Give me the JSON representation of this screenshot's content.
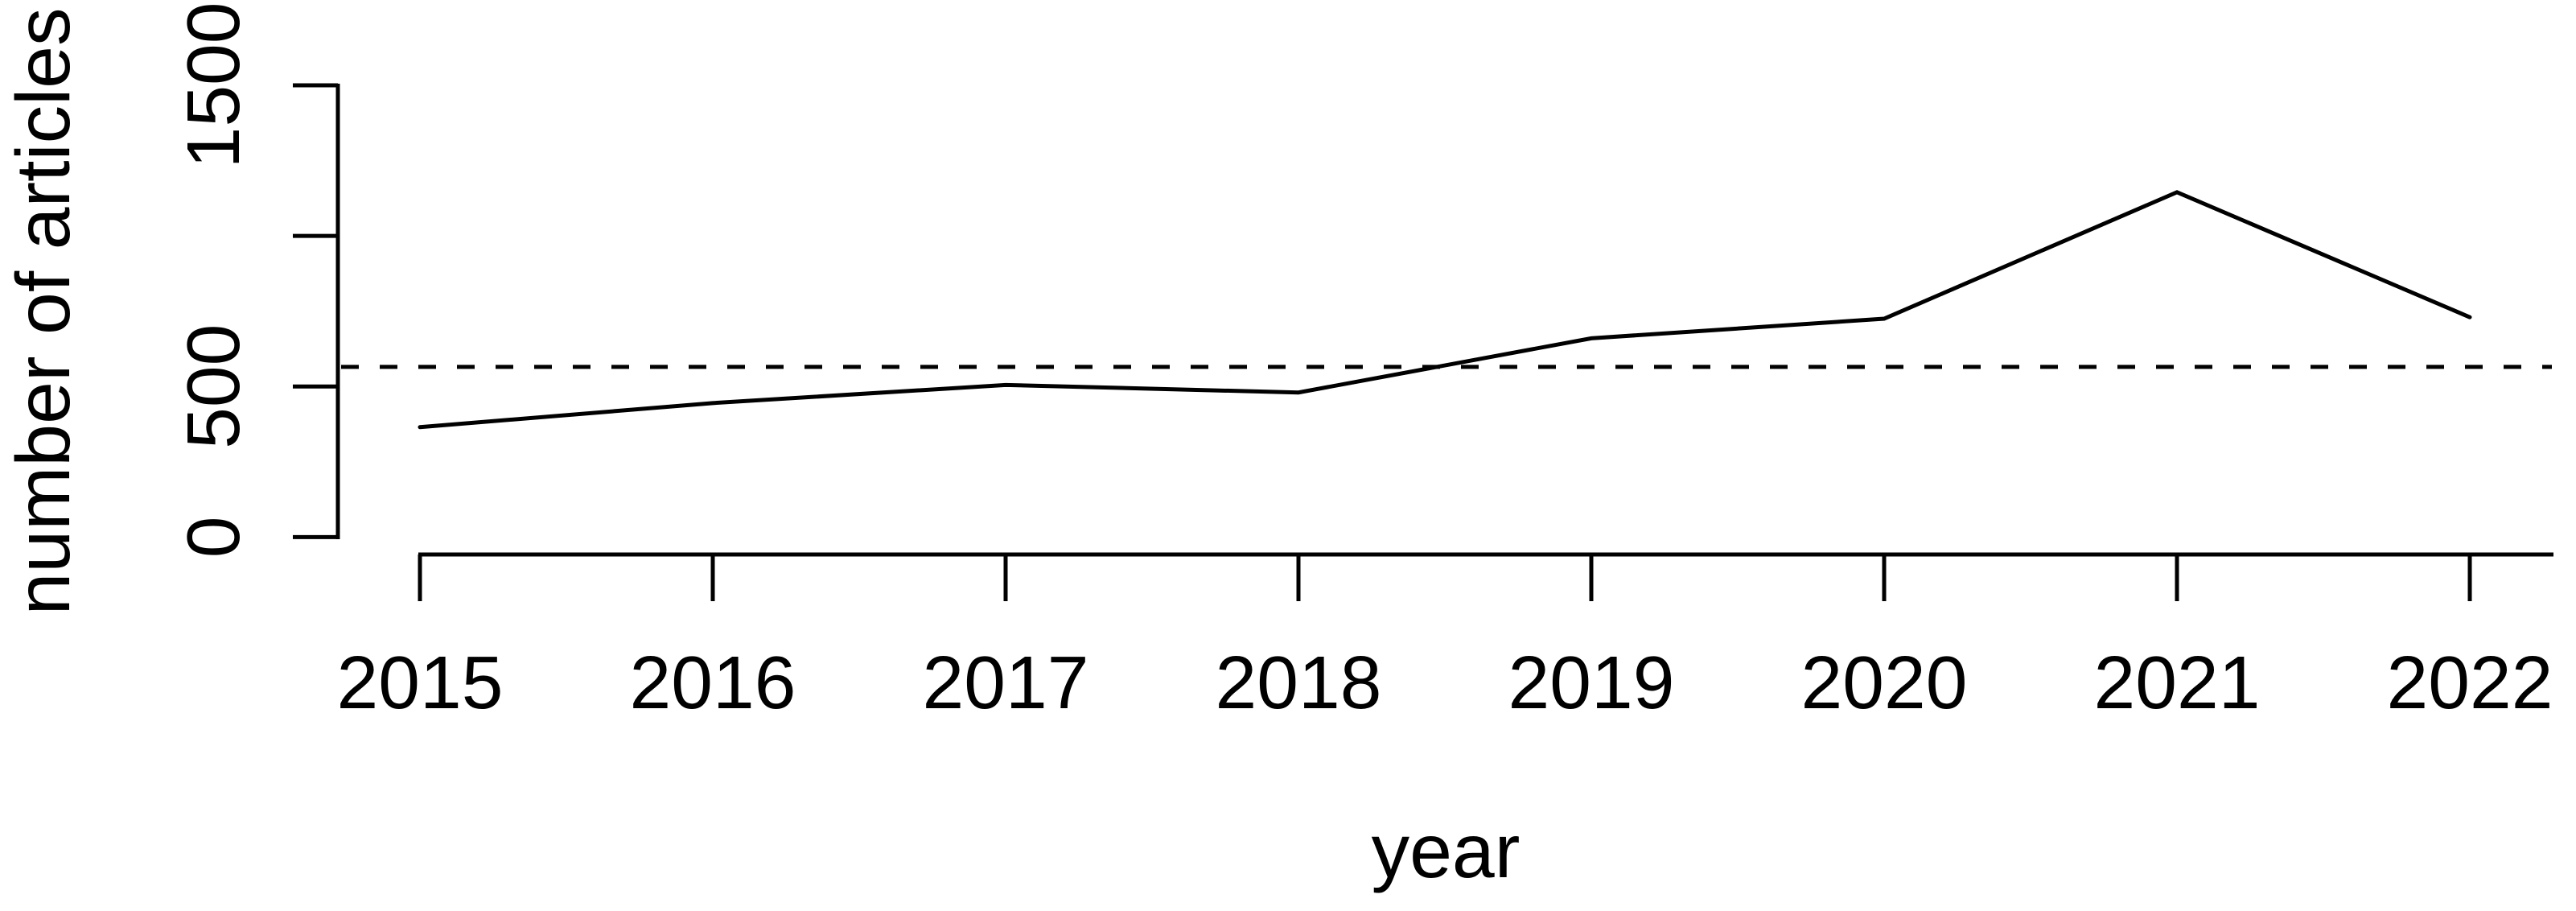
{
  "chart_data": {
    "type": "line",
    "title": "",
    "xlabel": "year",
    "ylabel": "number of articles",
    "x": [
      2015,
      2016,
      2017,
      2018,
      2019,
      2020,
      2021,
      2022
    ],
    "x_tick_labels": [
      "2015",
      "2016",
      "2017",
      "2018",
      "2019",
      "2020",
      "2021",
      "2022"
    ],
    "series": [
      {
        "name": "number of articles",
        "values": [
          365,
          445,
          505,
          480,
          660,
          725,
          1145,
          730
        ]
      }
    ],
    "reference_line": {
      "type": "horizontal",
      "style": "dashed",
      "value": 565
    },
    "y_ticks": [
      0,
      500,
      1000,
      1500
    ],
    "y_tick_labels": [
      "0",
      "500",
      "",
      "1500"
    ],
    "ylim": [
      0,
      1500
    ],
    "xlim": [
      2015,
      2022
    ],
    "grid": false,
    "legend": "none",
    "line_color": "#000000",
    "background_color": "#ffffff"
  }
}
